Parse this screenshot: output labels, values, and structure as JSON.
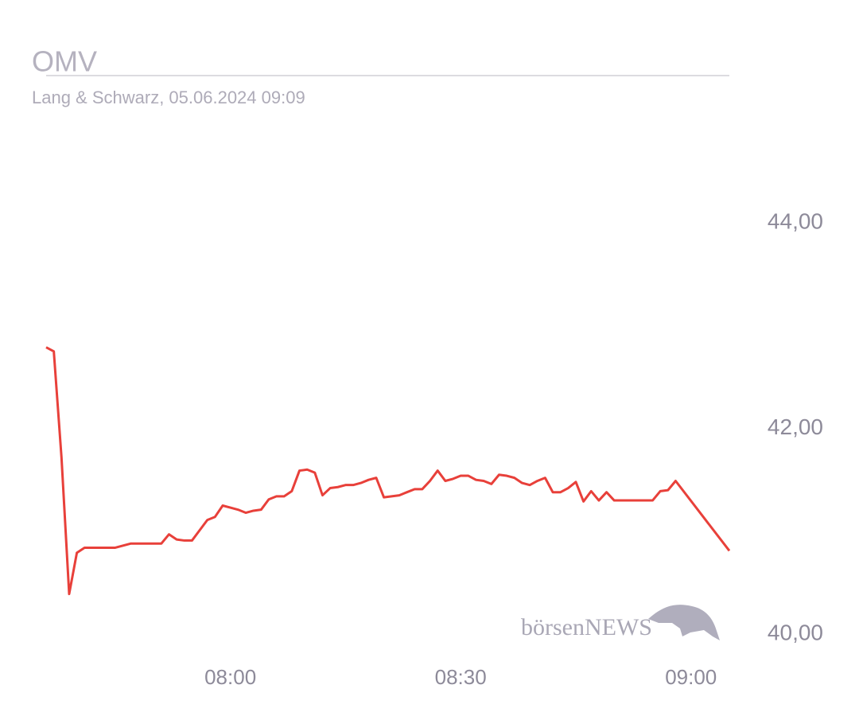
{
  "chart_data": {
    "type": "line",
    "title": "OMV",
    "subtitle": "Lang & Schwarz, 05.06.2024 09:09",
    "watermark": "börsenNEWS",
    "x": [
      "07:36",
      "07:37",
      "07:38",
      "07:39",
      "07:40",
      "07:41",
      "07:45",
      "07:47",
      "07:51",
      "07:52",
      "07:53",
      "07:54",
      "07:55",
      "07:56",
      "07:57",
      "07:58",
      "07:59",
      "08:00",
      "08:01",
      "08:02",
      "08:03",
      "08:04",
      "08:05",
      "08:06",
      "08:07",
      "08:08",
      "08:09",
      "08:10",
      "08:11",
      "08:12",
      "08:13",
      "08:14",
      "08:15",
      "08:16",
      "08:17",
      "08:18",
      "08:19",
      "08:20",
      "08:21",
      "08:22",
      "08:23",
      "08:24",
      "08:25",
      "08:26",
      "08:27",
      "08:28",
      "08:29",
      "08:30",
      "08:31",
      "08:32",
      "08:33",
      "08:34",
      "08:35",
      "08:36",
      "08:37",
      "08:38",
      "08:39",
      "08:40",
      "08:41",
      "08:42",
      "08:43",
      "08:44",
      "08:45",
      "08:46",
      "08:47",
      "08:48",
      "08:49",
      "08:50",
      "08:51",
      "08:52",
      "08:53",
      "08:54",
      "08:55",
      "08:56",
      "08:57",
      "08:58",
      "09:05"
    ],
    "series": [
      {
        "name": "OMV",
        "color": "#e8403a",
        "values": [
          42.79,
          42.75,
          41.72,
          40.39,
          40.79,
          40.84,
          40.84,
          40.88,
          40.88,
          40.97,
          40.92,
          40.91,
          40.91,
          41.01,
          41.11,
          41.14,
          41.25,
          41.23,
          41.21,
          41.18,
          41.2,
          41.21,
          41.31,
          41.34,
          41.34,
          41.39,
          41.59,
          41.6,
          41.57,
          41.35,
          41.42,
          41.43,
          41.45,
          41.45,
          41.47,
          41.5,
          41.52,
          41.33,
          41.34,
          41.35,
          41.38,
          41.41,
          41.41,
          41.49,
          41.59,
          41.49,
          41.51,
          41.54,
          41.54,
          41.5,
          41.49,
          41.46,
          41.55,
          41.54,
          41.52,
          41.47,
          41.45,
          41.49,
          41.52,
          41.38,
          41.38,
          41.42,
          41.48,
          41.29,
          41.39,
          41.3,
          41.38,
          41.3,
          41.3,
          41.3,
          41.3,
          41.3,
          41.3,
          41.39,
          41.4,
          41.49,
          40.81
        ]
      }
    ],
    "xlim": [
      "07:36",
      "09:05"
    ],
    "xticks": [
      "08:00",
      "08:30",
      "09:00"
    ],
    "ylim": [
      40,
      45
    ],
    "yticks": [
      {
        "value": 40,
        "label": "40,00"
      },
      {
        "value": 42,
        "label": "42,00"
      },
      {
        "value": 44,
        "label": "44,00"
      }
    ],
    "grid": false
  }
}
